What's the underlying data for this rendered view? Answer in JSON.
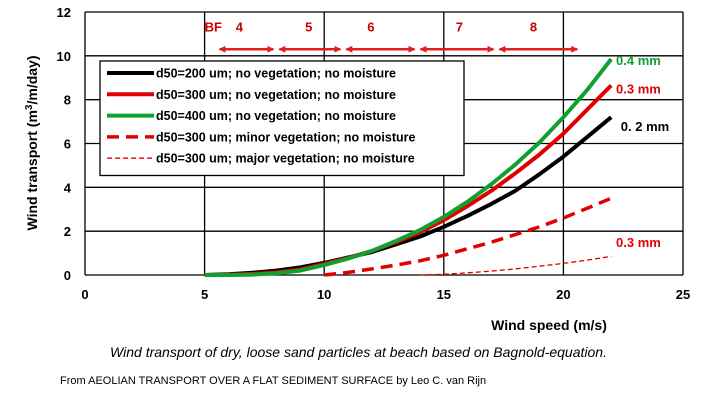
{
  "chart_data": {
    "type": "line",
    "title": "",
    "xlabel": "Wind speed (m/s)",
    "ylabel_main": "Wind transport (m",
    "ylabel_sup": "3",
    "ylabel_tail": "/m/day)",
    "xlim": [
      0,
      25
    ],
    "ylim": [
      0,
      12
    ],
    "xticks": [
      "0",
      "5",
      "10",
      "15",
      "20",
      "25"
    ],
    "yticks": [
      "0",
      "2",
      "4",
      "6",
      "8",
      "10",
      "12"
    ],
    "grid": true,
    "legend_position": "top-left",
    "beaufort": {
      "labels": [
        {
          "text": "BF",
          "x": 5.0
        },
        {
          "text": "4",
          "x": 6.3
        },
        {
          "text": "5",
          "x": 9.2
        },
        {
          "text": "6",
          "x": 11.8
        },
        {
          "text": "7",
          "x": 15.5
        },
        {
          "text": "8",
          "x": 18.6
        }
      ],
      "boundaries": [
        5.5,
        8.0,
        10.8,
        13.9,
        17.2,
        20.7
      ],
      "y": 10.3,
      "color": "#e02020"
    },
    "series": [
      {
        "name": "d50=200 um; no vegetation; no moisture",
        "color": "#000000",
        "style": "solid",
        "x": [
          5,
          6,
          7,
          8,
          9,
          10,
          11,
          12,
          13,
          14,
          15,
          16,
          17,
          18,
          19,
          20,
          21,
          22
        ],
        "y": [
          0,
          0.03,
          0.1,
          0.2,
          0.35,
          0.55,
          0.8,
          1.05,
          1.4,
          1.75,
          2.2,
          2.7,
          3.25,
          3.85,
          4.6,
          5.4,
          6.3,
          7.2
        ]
      },
      {
        "name": "d50=300 um; no vegetation; no moisture",
        "color": "#e00000",
        "style": "solid",
        "x": [
          5,
          6,
          7,
          8,
          9,
          10,
          11,
          12,
          13,
          14,
          15,
          16,
          17,
          18,
          19,
          20,
          21,
          22
        ],
        "y": [
          0,
          0.01,
          0.05,
          0.12,
          0.25,
          0.5,
          0.78,
          1.1,
          1.5,
          1.95,
          2.5,
          3.15,
          3.85,
          4.65,
          5.5,
          6.45,
          7.55,
          8.65
        ]
      },
      {
        "name": "d50=400 um; no vegetation; no moisture",
        "color": "#10a030",
        "style": "solid",
        "x": [
          5,
          6,
          7,
          8,
          9,
          10,
          11,
          12,
          13,
          14,
          15,
          16,
          17,
          18,
          19,
          20,
          21,
          22
        ],
        "y": [
          0,
          0,
          0.02,
          0.08,
          0.2,
          0.45,
          0.75,
          1.1,
          1.55,
          2.05,
          2.65,
          3.35,
          4.15,
          5.05,
          6.05,
          7.2,
          8.45,
          9.85
        ]
      },
      {
        "name": "d50=300 um; minor vegetation; no moisture",
        "color": "#e00000",
        "style": "dashed-thick",
        "x": [
          10,
          11,
          12,
          13,
          14,
          15,
          16,
          17,
          18,
          19,
          20,
          21,
          22
        ],
        "y": [
          0,
          0.12,
          0.28,
          0.45,
          0.65,
          0.9,
          1.2,
          1.5,
          1.85,
          2.2,
          2.6,
          3.05,
          3.5
        ]
      },
      {
        "name": "d50=300 um; major vegetation; no moisture",
        "color": "#e00000",
        "style": "dashed-thin",
        "x": [
          14,
          15,
          16,
          17,
          18,
          19,
          20,
          21,
          22
        ],
        "y": [
          0,
          0.03,
          0.1,
          0.18,
          0.28,
          0.4,
          0.53,
          0.68,
          0.85
        ]
      }
    ],
    "annotations": [
      {
        "text": "0.4 mm",
        "color": "#10a030",
        "x": 22.2,
        "y": 9.8
      },
      {
        "text": "0.3 mm",
        "color": "#e00000",
        "x": 22.2,
        "y": 8.5
      },
      {
        "text": "0. 2 mm",
        "color": "#000000",
        "x": 22.4,
        "y": 6.8
      },
      {
        "text": "0.3 mm",
        "color": "#e00000",
        "x": 22.2,
        "y": 1.5
      }
    ]
  },
  "caption": "Wind transport of dry, loose sand particles at beach based on Bagnold-equation.",
  "source": "From AEOLIAN TRANSPORT OVER A FLAT SEDIMENT SURFACE by Leo C. van Rijn"
}
